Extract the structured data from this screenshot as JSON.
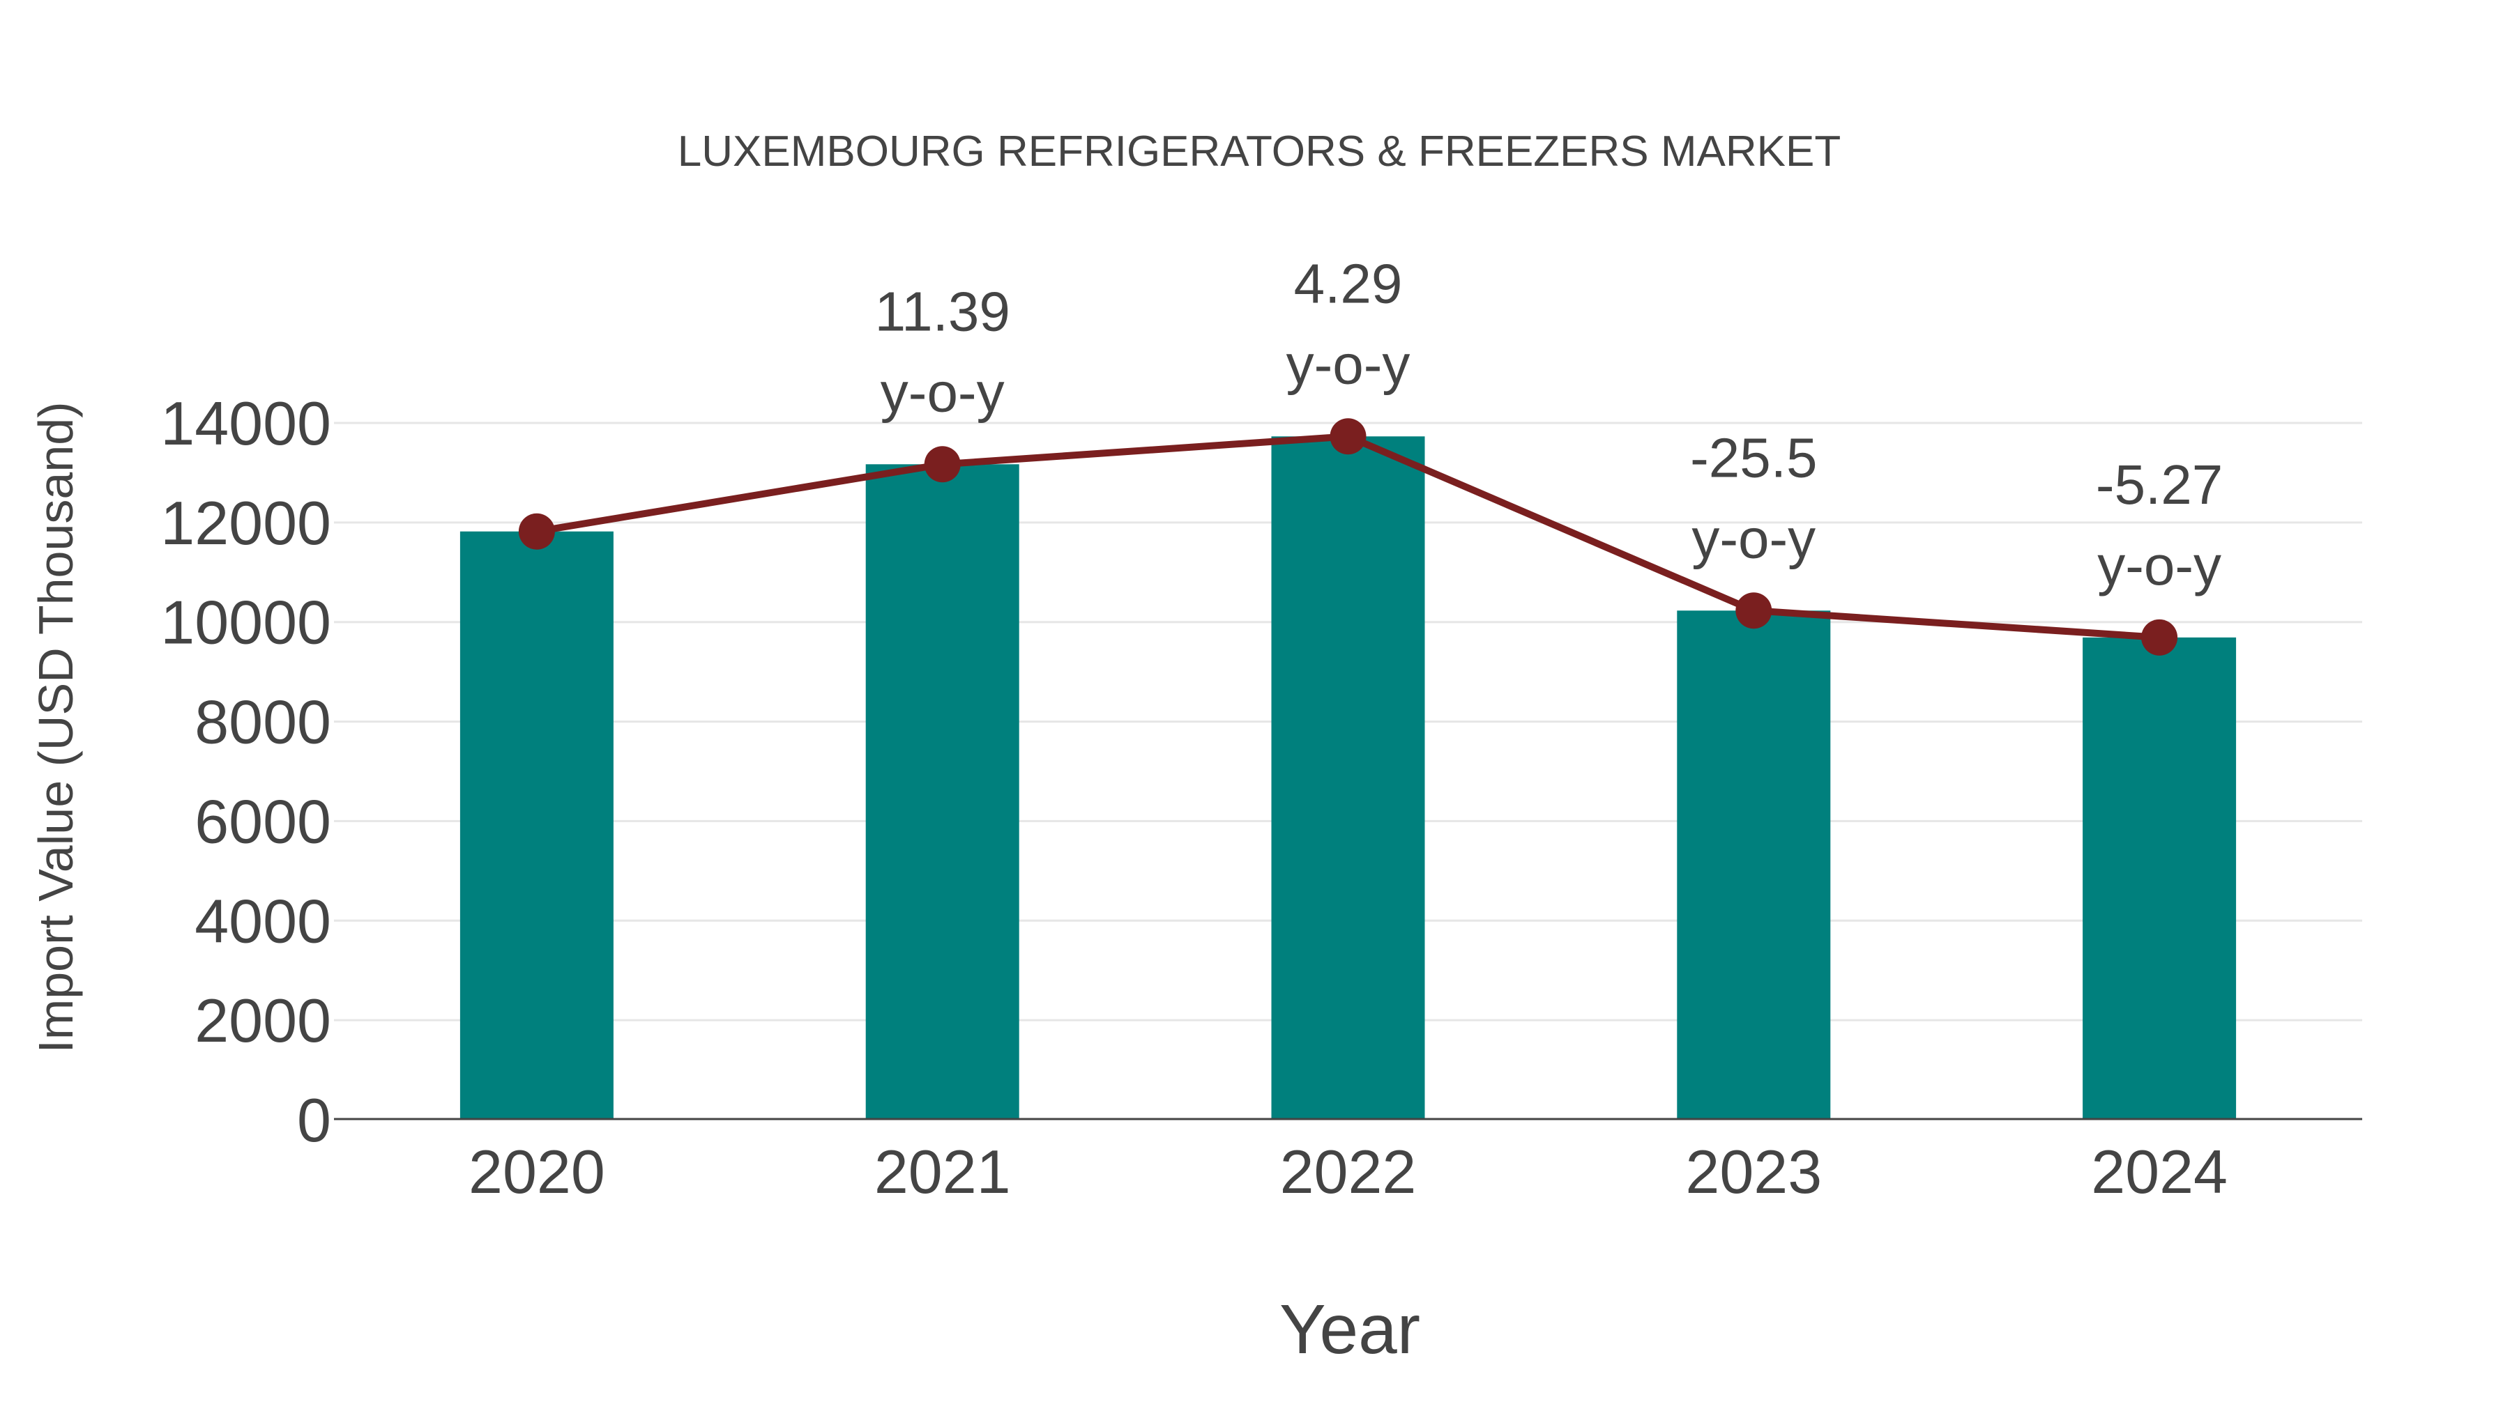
{
  "colors": {
    "bar": "#00807d",
    "line": "#7a1f1f",
    "grid": "#e6e6e6",
    "axis": "#444444",
    "text": "#444444"
  },
  "chart_data": {
    "type": "bar",
    "title": "LUXEMBOURG REFRIGERATORS & FREEZERS MARKET",
    "xlabel": "Year",
    "ylabel": "Import Value (USD Thousand)",
    "categories": [
      "2020",
      "2021",
      "2022",
      "2023",
      "2024"
    ],
    "series": [
      {
        "name": "Import Value",
        "type": "bar",
        "values": [
          11820,
          13170,
          13730,
          10230,
          9690
        ]
      },
      {
        "name": "Import Value trend",
        "type": "line",
        "values": [
          11820,
          13170,
          13730,
          10230,
          9690
        ]
      }
    ],
    "annotations": [
      {
        "category": "2021",
        "value": "11.39",
        "suffix": "y-o-y"
      },
      {
        "category": "2022",
        "value": "4.29",
        "suffix": "y-o-y"
      },
      {
        "category": "2023",
        "value": "-25.5",
        "suffix": "y-o-y"
      },
      {
        "category": "2024",
        "value": "-5.27",
        "suffix": "y-o-y"
      }
    ],
    "yticks": [
      "0",
      "2000",
      "4000",
      "6000",
      "8000",
      "10000",
      "12000",
      "14000"
    ],
    "ylim": [
      0,
      14000
    ],
    "grid": true,
    "legend": "none"
  }
}
